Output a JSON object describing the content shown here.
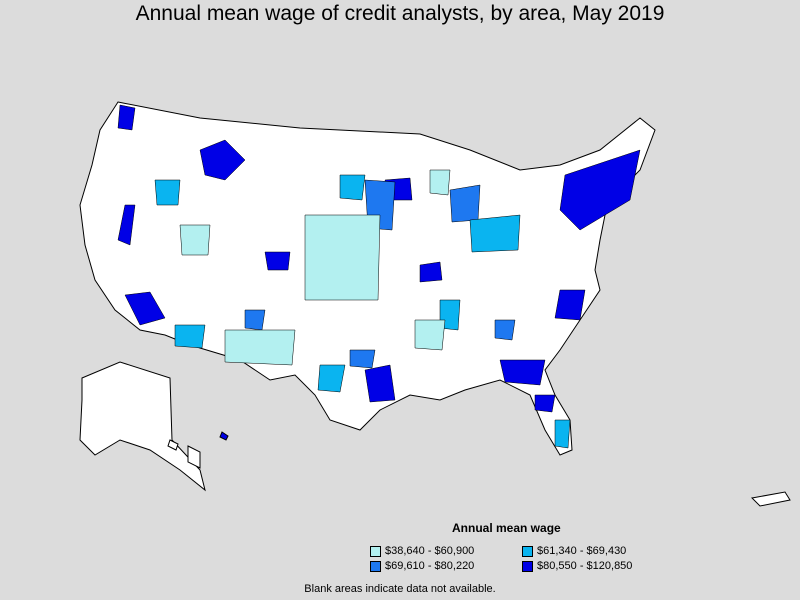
{
  "title": "Annual mean wage of credit analysts, by area, May 2019",
  "legend": {
    "title": "Annual mean wage",
    "items": [
      {
        "label": "$38,640 - $60,900",
        "color": "#b3f0f0"
      },
      {
        "label": "$61,340 - $69,430",
        "color": "#0ab4f0"
      },
      {
        "label": "$69,610 - $80,220",
        "color": "#1e78f0"
      },
      {
        "label": "$80,550 - $120,850",
        "color": "#0000e6"
      }
    ]
  },
  "footnote": "Blank areas indicate data not available.",
  "colors": {
    "background": "#dcdcdc",
    "land": "#ffffff",
    "border": "#000000"
  }
}
